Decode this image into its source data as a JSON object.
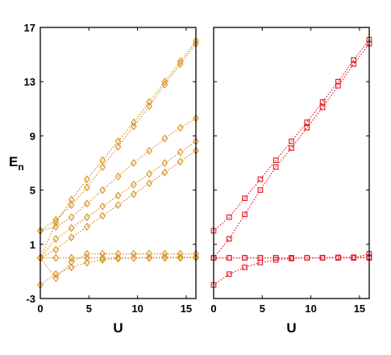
{
  "chart_data": [
    {
      "type": "line",
      "panel": "left",
      "marker": "diamond",
      "line_style": "dotted",
      "color": "#D98F1A",
      "xlabel": "U",
      "ylabel": "E",
      "ylabel_subscript": "n",
      "xlim": [
        0,
        16
      ],
      "ylim": [
        -3,
        17
      ],
      "xticks": [
        "0",
        "5",
        "10",
        "15"
      ],
      "yticks": [
        "-3",
        "1",
        "5",
        "9",
        "13",
        "17"
      ],
      "x": [
        0,
        1.6,
        3.2,
        4.8,
        6.4,
        8.0,
        9.6,
        11.2,
        12.8,
        14.4,
        16.0
      ],
      "series": [
        {
          "values": [
            -2.0,
            -1.2,
            -0.7,
            -0.35,
            -0.15,
            -0.05,
            0.0,
            0.02,
            0.04,
            0.05,
            0.05
          ]
        },
        {
          "values": [
            0,
            0,
            0,
            0,
            0,
            0,
            0,
            0,
            0,
            0,
            0
          ]
        },
        {
          "values": [
            0,
            -1.5,
            -0.3,
            0.3,
            0.3,
            0.3,
            0.3,
            0.3,
            0.3,
            0.3,
            0.3
          ]
        },
        {
          "values": [
            0,
            0.6,
            1.5,
            2.3,
            3.1,
            3.9,
            4.7,
            5.5,
            6.3,
            7.1,
            7.9
          ]
        },
        {
          "values": [
            0,
            1.4,
            2.2,
            3.0,
            3.8,
            4.6,
            5.4,
            6.2,
            7.0,
            7.8,
            8.6
          ]
        },
        {
          "values": [
            2.0,
            2.3,
            3.0,
            4.0,
            5.0,
            6.0,
            7.0,
            7.9,
            8.8,
            9.6,
            10.3
          ]
        },
        {
          "values": [
            0,
            2.6,
            4.3,
            5.8,
            7.2,
            8.6,
            10.0,
            11.5,
            13.0,
            14.5,
            16.0
          ]
        },
        {
          "values": [
            2.0,
            2.8,
            3.9,
            5.2,
            6.7,
            8.2,
            9.7,
            11.2,
            12.8,
            14.3,
            15.8
          ]
        }
      ]
    },
    {
      "type": "line",
      "panel": "right",
      "marker": "square",
      "line_style": "dotted",
      "color": "#E5171F",
      "xlabel": "U",
      "xlim": [
        0,
        16
      ],
      "ylim": [
        -3,
        17
      ],
      "xticks": [
        "0",
        "5",
        "10",
        "15"
      ],
      "x": [
        0,
        1.6,
        3.2,
        4.8,
        6.4,
        8.0,
        9.6,
        11.2,
        12.8,
        14.4,
        16.0
      ],
      "series": [
        {
          "values": [
            -2.0,
            -1.2,
            -0.7,
            -0.35,
            -0.15,
            -0.05,
            0.0,
            0.02,
            0.04,
            0.05,
            0.05
          ]
        },
        {
          "values": [
            0,
            0,
            0,
            0,
            0,
            0,
            0,
            0,
            0,
            0,
            0
          ]
        },
        {
          "values": [
            0,
            0,
            0,
            0,
            0,
            0,
            0,
            0,
            0,
            0,
            0.3
          ]
        },
        {
          "values": [
            0,
            1.4,
            3.2,
            5.0,
            6.7,
            8.1,
            9.6,
            11.1,
            12.7,
            14.3,
            15.8
          ]
        },
        {
          "values": [
            2.0,
            3.0,
            4.4,
            5.8,
            7.2,
            8.6,
            10.0,
            11.5,
            13.0,
            14.6,
            16.1
          ]
        }
      ]
    }
  ]
}
